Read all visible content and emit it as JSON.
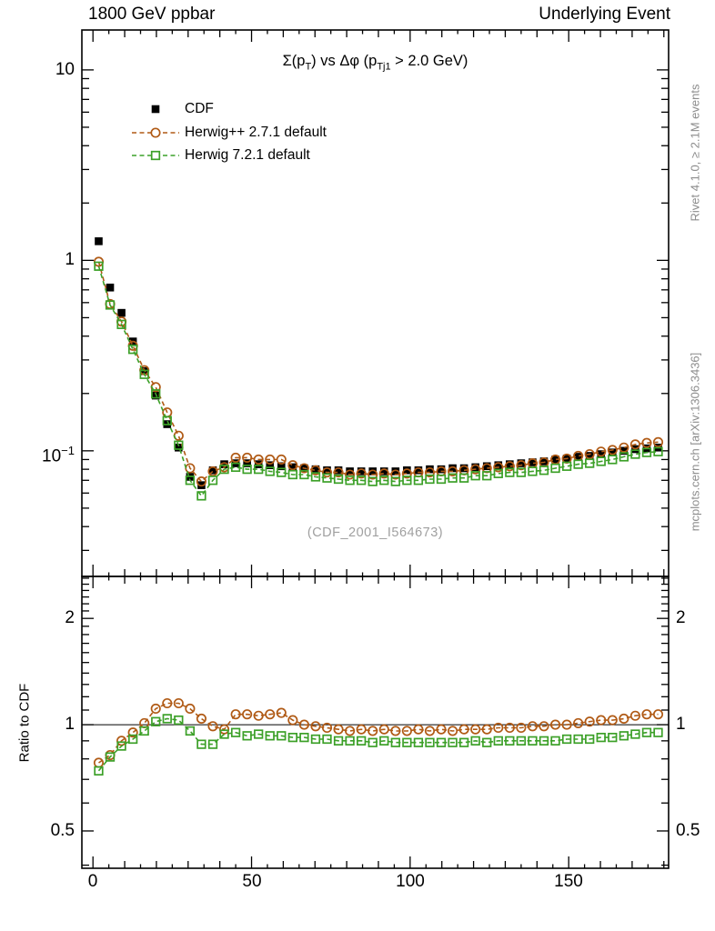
{
  "header": {
    "left": "1800 GeV ppbar",
    "right": "Underlying Event"
  },
  "title": {
    "p1": "Σ(p",
    "s1": "T",
    "p2": ") vs Δφ (p",
    "s2": "Tj1",
    "p3": " > 2.0 GeV)"
  },
  "legend": {
    "position": "top-left",
    "items": [
      {
        "label": "CDF",
        "marker": "filled-square",
        "color": "#000000"
      },
      {
        "label": "Herwig++ 2.7.1 default",
        "marker": "open-circle",
        "color": "#b05a15"
      },
      {
        "label": "Herwig 7.2.1 default",
        "marker": "open-square",
        "color": "#3ca028"
      }
    ]
  },
  "side_notes": {
    "top_right": "Rivet 4.1.0, ≥ 2.1M events",
    "bottom_right": "mcplots.cern.ch [arXiv:1306.3436]"
  },
  "watermark": "(CDF_2001_I564673)",
  "axes": {
    "x": {
      "tick_labels": [
        "0",
        "50",
        "100",
        "150"
      ],
      "tick_values": [
        0,
        50,
        100,
        150
      ]
    },
    "main_y": {
      "scale": "log",
      "ticks": [
        {
          "v": 10,
          "base": "10"
        },
        {
          "v": 1,
          "base": "1"
        },
        {
          "v": 0.1,
          "base": "10",
          "exp": "−1"
        }
      ]
    },
    "ratio_y": {
      "scale": "log",
      "label": "Ratio to CDF",
      "tick_labels": [
        "2",
        "1",
        "0.5"
      ],
      "tick_values": [
        2,
        1,
        0.5
      ]
    }
  },
  "chart_data": [
    {
      "type": "scatter",
      "panel": "main",
      "title": "Σ(p_T) vs Δφ (p_Tj1 > 2.0 GeV)",
      "ylog": true,
      "ylim": [
        0.0219,
        16.2
      ],
      "xlim": [
        -3.5,
        181.5
      ],
      "grid": false,
      "x": [
        1.8,
        5.4,
        9,
        12.6,
        16.2,
        19.8,
        23.4,
        27,
        30.6,
        34.2,
        37.8,
        41.4,
        45,
        48.6,
        52.2,
        55.8,
        59.4,
        63,
        66.6,
        70.2,
        73.8,
        77.4,
        81,
        84.6,
        88.2,
        91.8,
        95.4,
        99,
        102.6,
        106.2,
        109.8,
        113.4,
        117,
        120.6,
        124.2,
        127.8,
        131.4,
        135,
        138.6,
        142.2,
        145.8,
        149.4,
        153,
        156.6,
        160.2,
        163.8,
        167.4,
        171,
        174.6,
        178.2
      ],
      "series": [
        {
          "name": "CDF",
          "marker": "filled-square",
          "color": "#000000",
          "line": "none",
          "values": [
            1.26,
            0.72,
            0.53,
            0.375,
            0.262,
            0.195,
            0.138,
            0.104,
            0.073,
            0.066,
            0.079,
            0.085,
            0.086,
            0.086,
            0.085,
            0.084,
            0.083,
            0.082,
            0.081,
            0.08,
            0.079,
            0.079,
            0.078,
            0.078,
            0.078,
            0.078,
            0.078,
            0.079,
            0.079,
            0.08,
            0.08,
            0.081,
            0.081,
            0.082,
            0.083,
            0.084,
            0.085,
            0.086,
            0.087,
            0.088,
            0.09,
            0.091,
            0.093,
            0.094,
            0.096,
            0.098,
            0.1,
            0.102,
            0.103,
            0.104
          ]
        },
        {
          "name": "Herwig++ 2.7.1 default",
          "marker": "open-circle",
          "color": "#b05a15",
          "line": "dashed",
          "values": [
            0.983,
            0.59,
            0.477,
            0.356,
            0.265,
            0.216,
            0.159,
            0.12,
            0.081,
            0.069,
            0.078,
            0.082,
            0.092,
            0.092,
            0.09,
            0.09,
            0.09,
            0.084,
            0.081,
            0.079,
            0.077,
            0.077,
            0.075,
            0.076,
            0.075,
            0.076,
            0.075,
            0.076,
            0.077,
            0.077,
            0.078,
            0.078,
            0.079,
            0.08,
            0.081,
            0.082,
            0.083,
            0.084,
            0.086,
            0.087,
            0.09,
            0.091,
            0.094,
            0.096,
            0.099,
            0.101,
            0.104,
            0.108,
            0.11,
            0.111
          ]
        },
        {
          "name": "Herwig 7.2.1 default",
          "marker": "open-square",
          "color": "#3ca028",
          "line": "dashed",
          "values": [
            0.932,
            0.583,
            0.461,
            0.341,
            0.252,
            0.199,
            0.144,
            0.107,
            0.07,
            0.058,
            0.07,
            0.08,
            0.082,
            0.08,
            0.08,
            0.078,
            0.077,
            0.075,
            0.075,
            0.073,
            0.072,
            0.071,
            0.07,
            0.07,
            0.069,
            0.07,
            0.069,
            0.07,
            0.07,
            0.071,
            0.071,
            0.072,
            0.072,
            0.074,
            0.074,
            0.076,
            0.077,
            0.077,
            0.078,
            0.079,
            0.081,
            0.083,
            0.085,
            0.086,
            0.088,
            0.09,
            0.093,
            0.096,
            0.098,
            0.099
          ]
        }
      ]
    },
    {
      "type": "scatter",
      "panel": "ratio",
      "ylabel": "Ratio to CDF",
      "ylog": true,
      "ylim": [
        0.392,
        2.63
      ],
      "xlim": [
        -3.5,
        181.5
      ],
      "reference_line": 1,
      "grid": false,
      "x": [
        1.8,
        5.4,
        9,
        12.6,
        16.2,
        19.8,
        23.4,
        27,
        30.6,
        34.2,
        37.8,
        41.4,
        45,
        48.6,
        52.2,
        55.8,
        59.4,
        63,
        66.6,
        70.2,
        73.8,
        77.4,
        81,
        84.6,
        88.2,
        91.8,
        95.4,
        99,
        102.6,
        106.2,
        109.8,
        113.4,
        117,
        120.6,
        124.2,
        127.8,
        131.4,
        135,
        138.6,
        142.2,
        145.8,
        149.4,
        153,
        156.6,
        160.2,
        163.8,
        167.4,
        171,
        174.6,
        178.2
      ],
      "series": [
        {
          "name": "Herwig++ 2.7.1 default / CDF",
          "marker": "open-circle",
          "color": "#b05a15",
          "line": "dashed",
          "values": [
            0.78,
            0.82,
            0.9,
            0.95,
            1.01,
            1.11,
            1.15,
            1.15,
            1.11,
            1.04,
            0.99,
            0.97,
            1.07,
            1.07,
            1.06,
            1.07,
            1.08,
            1.03,
            1.0,
            0.99,
            0.98,
            0.97,
            0.96,
            0.97,
            0.96,
            0.97,
            0.96,
            0.96,
            0.97,
            0.96,
            0.97,
            0.96,
            0.97,
            0.97,
            0.97,
            0.98,
            0.98,
            0.98,
            0.99,
            0.99,
            1.0,
            1.0,
            1.01,
            1.02,
            1.03,
            1.03,
            1.04,
            1.06,
            1.07,
            1.07
          ]
        },
        {
          "name": "Herwig 7.2.1 default / CDF",
          "marker": "open-square",
          "color": "#3ca028",
          "line": "dashed",
          "values": [
            0.74,
            0.81,
            0.87,
            0.91,
            0.96,
            1.02,
            1.04,
            1.03,
            0.96,
            0.88,
            0.88,
            0.94,
            0.95,
            0.93,
            0.94,
            0.93,
            0.93,
            0.92,
            0.92,
            0.91,
            0.91,
            0.9,
            0.9,
            0.9,
            0.89,
            0.9,
            0.89,
            0.89,
            0.89,
            0.89,
            0.89,
            0.89,
            0.89,
            0.9,
            0.89,
            0.9,
            0.9,
            0.9,
            0.9,
            0.9,
            0.9,
            0.91,
            0.91,
            0.91,
            0.92,
            0.92,
            0.93,
            0.94,
            0.95,
            0.95
          ]
        }
      ]
    }
  ]
}
